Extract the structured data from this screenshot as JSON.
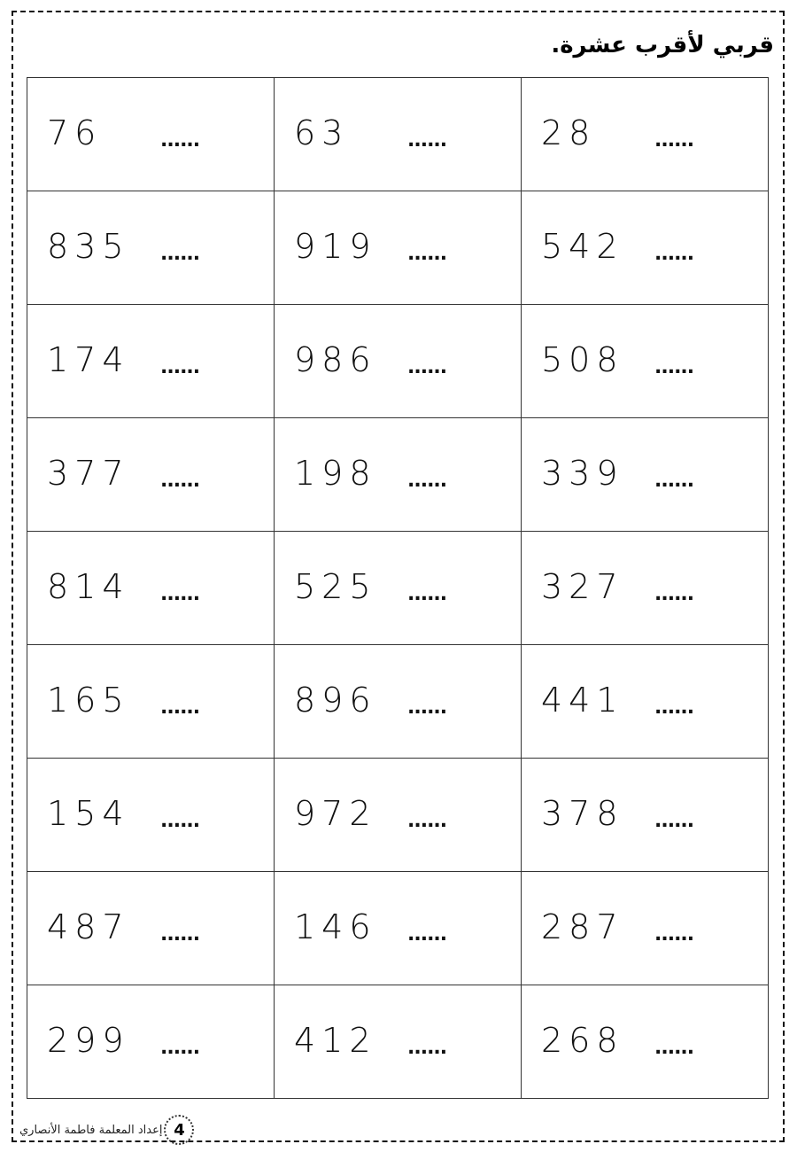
{
  "title": "قربي لأقرب عشرة.",
  "answer_blank": "......",
  "rows": [
    [
      "76",
      "63",
      "28"
    ],
    [
      "835",
      "919",
      "542"
    ],
    [
      "174",
      "986",
      "508"
    ],
    [
      "377",
      "198",
      "339"
    ],
    [
      "814",
      "525",
      "327"
    ],
    [
      "165",
      "896",
      "441"
    ],
    [
      "154",
      "972",
      "378"
    ],
    [
      "487",
      "146",
      "287"
    ],
    [
      "299",
      "412",
      "268"
    ]
  ],
  "footer": {
    "page_number": "4",
    "credit": "إعداد المعلمة فاطمة الأنصاري"
  }
}
